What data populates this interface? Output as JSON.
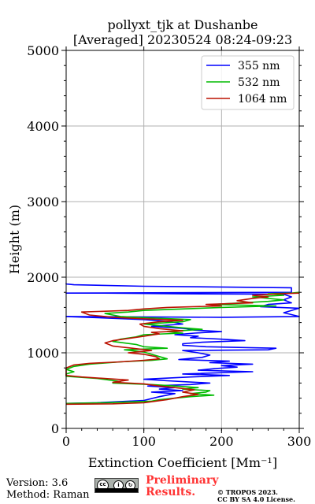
{
  "chart_data": {
    "type": "line",
    "title_line1": "pollyxt_tjk at Dushanbe",
    "title_line2": "[Averaged] 20230524 08:24-09:23",
    "xlabel": "Extinction Coefficient [Mm⁻¹]",
    "ylabel": "Height (m)",
    "xlim": [
      0,
      300
    ],
    "ylim": [
      0,
      5000
    ],
    "x_ticks": [
      "0",
      "100",
      "200",
      "300"
    ],
    "y_ticks": [
      "0",
      "1000",
      "2000",
      "3000",
      "4000",
      "5000"
    ],
    "grid": true,
    "legend_position": "top-right",
    "series": [
      {
        "name": "355 nm",
        "color": "#0000ff",
        "points": [
          [
            0,
            330
          ],
          [
            40,
            340
          ],
          [
            100,
            370
          ],
          [
            120,
            420
          ],
          [
            140,
            460
          ],
          [
            110,
            480
          ],
          [
            150,
            500
          ],
          [
            120,
            520
          ],
          [
            140,
            540
          ],
          [
            105,
            560
          ],
          [
            160,
            580
          ],
          [
            185,
            600
          ],
          [
            130,
            630
          ],
          [
            100,
            650
          ],
          [
            160,
            680
          ],
          [
            210,
            700
          ],
          [
            150,
            720
          ],
          [
            240,
            750
          ],
          [
            170,
            770
          ],
          [
            190,
            790
          ],
          [
            220,
            810
          ],
          [
            200,
            830
          ],
          [
            240,
            850
          ],
          [
            185,
            870
          ],
          [
            210,
            890
          ],
          [
            145,
            910
          ],
          [
            175,
            940
          ],
          [
            185,
            970
          ],
          [
            170,
            1000
          ],
          [
            150,
            1030
          ],
          [
            260,
            1040
          ],
          [
            270,
            1060
          ],
          [
            180,
            1080
          ],
          [
            150,
            1100
          ],
          [
            150,
            1120
          ],
          [
            175,
            1140
          ],
          [
            230,
            1160
          ],
          [
            200,
            1180
          ],
          [
            160,
            1200
          ],
          [
            170,
            1220
          ],
          [
            140,
            1240
          ],
          [
            165,
            1260
          ],
          [
            200,
            1280
          ],
          [
            165,
            1300
          ],
          [
            155,
            1320
          ],
          [
            110,
            1350
          ],
          [
            150,
            1380
          ],
          [
            135,
            1410
          ],
          [
            100,
            1440
          ],
          [
            50,
            1460
          ],
          [
            0,
            1480
          ],
          [
            200,
            1470
          ],
          [
            300,
            1480
          ],
          [
            280,
            1530
          ],
          [
            300,
            1590
          ],
          [
            250,
            1610
          ],
          [
            260,
            1640
          ],
          [
            290,
            1660
          ],
          [
            280,
            1700
          ],
          [
            290,
            1740
          ],
          [
            280,
            1775
          ],
          [
            150,
            1780
          ],
          [
            50,
            1790
          ],
          [
            0,
            1790
          ],
          [
            290,
            1800
          ],
          [
            290,
            1860
          ],
          [
            100,
            1880
          ],
          [
            10,
            1900
          ],
          [
            0,
            1910
          ],
          [
            0,
            1920
          ]
        ]
      },
      {
        "name": "532 nm",
        "color": "#00bb00",
        "points": [
          [
            0,
            330
          ],
          [
            50,
            340
          ],
          [
            110,
            360
          ],
          [
            120,
            380
          ],
          [
            140,
            400
          ],
          [
            160,
            420
          ],
          [
            190,
            440
          ],
          [
            160,
            460
          ],
          [
            180,
            480
          ],
          [
            185,
            500
          ],
          [
            150,
            520
          ],
          [
            170,
            540
          ],
          [
            140,
            560
          ],
          [
            110,
            580
          ],
          [
            60,
            600
          ],
          [
            70,
            620
          ],
          [
            40,
            660
          ],
          [
            0,
            690
          ],
          [
            0,
            720
          ],
          [
            10,
            750
          ],
          [
            0,
            780
          ],
          [
            10,
            820
          ],
          [
            30,
            850
          ],
          [
            70,
            880
          ],
          [
            110,
            900
          ],
          [
            130,
            920
          ],
          [
            120,
            950
          ],
          [
            110,
            980
          ],
          [
            100,
            1010
          ],
          [
            75,
            1040
          ],
          [
            130,
            1060
          ],
          [
            100,
            1080
          ],
          [
            90,
            1110
          ],
          [
            60,
            1150
          ],
          [
            70,
            1180
          ],
          [
            90,
            1210
          ],
          [
            100,
            1240
          ],
          [
            150,
            1260
          ],
          [
            130,
            1280
          ],
          [
            175,
            1310
          ],
          [
            150,
            1330
          ],
          [
            120,
            1360
          ],
          [
            100,
            1380
          ],
          [
            150,
            1410
          ],
          [
            160,
            1440
          ],
          [
            110,
            1460
          ],
          [
            70,
            1480
          ],
          [
            50,
            1520
          ],
          [
            80,
            1540
          ],
          [
            100,
            1560
          ],
          [
            150,
            1580
          ],
          [
            200,
            1600
          ],
          [
            270,
            1620
          ],
          [
            190,
            1640
          ],
          [
            260,
            1680
          ],
          [
            280,
            1700
          ],
          [
            240,
            1740
          ],
          [
            280,
            1760
          ],
          [
            260,
            1780
          ],
          [
            290,
            1790
          ],
          [
            300,
            1800
          ]
        ]
      },
      {
        "name": "1064 nm",
        "color": "#bb1100",
        "points": [
          [
            0,
            320
          ],
          [
            60,
            325
          ],
          [
            100,
            340
          ],
          [
            130,
            380
          ],
          [
            150,
            420
          ],
          [
            170,
            450
          ],
          [
            150,
            480
          ],
          [
            165,
            510
          ],
          [
            140,
            540
          ],
          [
            120,
            560
          ],
          [
            100,
            590
          ],
          [
            60,
            610
          ],
          [
            80,
            640
          ],
          [
            20,
            680
          ],
          [
            0,
            700
          ],
          [
            0,
            730
          ],
          [
            0,
            760
          ],
          [
            0,
            800
          ],
          [
            10,
            840
          ],
          [
            30,
            860
          ],
          [
            70,
            880
          ],
          [
            100,
            900
          ],
          [
            120,
            920
          ],
          [
            115,
            950
          ],
          [
            100,
            980
          ],
          [
            80,
            1000
          ],
          [
            110,
            1030
          ],
          [
            85,
            1060
          ],
          [
            60,
            1090
          ],
          [
            50,
            1130
          ],
          [
            60,
            1160
          ],
          [
            80,
            1190
          ],
          [
            100,
            1220
          ],
          [
            120,
            1250
          ],
          [
            110,
            1270
          ],
          [
            150,
            1290
          ],
          [
            120,
            1320
          ],
          [
            100,
            1350
          ],
          [
            95,
            1380
          ],
          [
            120,
            1410
          ],
          [
            150,
            1430
          ],
          [
            100,
            1450
          ],
          [
            60,
            1470
          ],
          [
            30,
            1500
          ],
          [
            20,
            1540
          ],
          [
            80,
            1560
          ],
          [
            100,
            1580
          ],
          [
            130,
            1600
          ],
          [
            200,
            1620
          ],
          [
            180,
            1640
          ],
          [
            240,
            1660
          ],
          [
            220,
            1690
          ],
          [
            240,
            1720
          ],
          [
            260,
            1740
          ],
          [
            240,
            1760
          ],
          [
            275,
            1780
          ],
          [
            300,
            1790
          ]
        ]
      }
    ]
  },
  "footer": {
    "version": "Version: 3.6",
    "method": "Method: Raman",
    "preliminary_line1": "Preliminary",
    "preliminary_line2": "Results.",
    "copyright_line1": "© TROPOS 2023.",
    "copyright_line2": "CC BY SA 4.0 License.",
    "license_badge": "CC BY SA",
    "badge_color": "#aab0ab",
    "preliminary_color": "#ff3333"
  }
}
